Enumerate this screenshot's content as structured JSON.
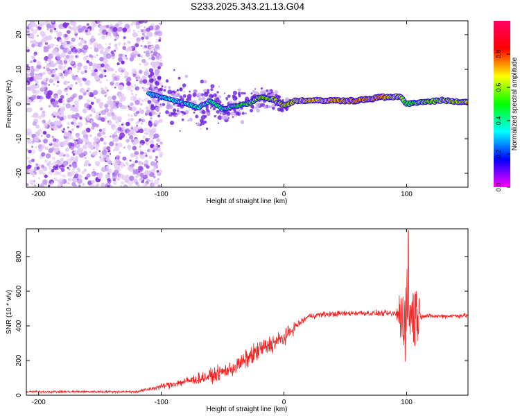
{
  "title": "S233.2025.343.21.13.G04",
  "chart_data": [
    {
      "type": "heatmap",
      "xlabel": "Height of straight line (km)",
      "ylabel": "Frequency (Hz)",
      "xlim": [
        -210,
        150
      ],
      "ylim": [
        -24,
        24
      ],
      "xticks": [
        -200,
        -100,
        0,
        100
      ],
      "xtick_labels": [
        "-200",
        "-100",
        "0",
        "100"
      ],
      "yticks": [
        -20,
        -10,
        0,
        10,
        20
      ],
      "ytick_labels": [
        "-20",
        "-10",
        "0",
        "10",
        "20"
      ],
      "colorbar": {
        "label": "Normalized spectral amplitude",
        "range": [
          0,
          1
        ],
        "ticks": [
          0,
          0.2,
          0.4,
          0.6,
          0.8
        ],
        "tick_labels": [
          "0.0",
          "0.2",
          "0.4",
          "0.6",
          "0.8"
        ],
        "colormap": [
          "#ff00ff",
          "#0000ff",
          "#00ffff",
          "#00ff00",
          "#ffff00",
          "#ff0000",
          "#ff0066"
        ]
      },
      "ridge": {
        "x": [
          -110,
          -95,
          -80,
          -70,
          -60,
          -50,
          -40,
          -30,
          -20,
          -10,
          0,
          10,
          20,
          40,
          60,
          80,
          95,
          100,
          110,
          130,
          150
        ],
        "frequency": [
          3,
          1.5,
          0,
          -1,
          1,
          -1.5,
          -0.5,
          0,
          2,
          1.5,
          -0.5,
          1,
          1,
          1,
          1,
          2,
          2,
          0,
          0.5,
          1,
          0.5
        ],
        "amplitude": [
          0.15,
          0.2,
          0.25,
          0.25,
          0.3,
          0.3,
          0.35,
          0.45,
          0.55,
          0.6,
          0.65,
          0.7,
          0.75,
          0.8,
          0.85,
          0.85,
          0.6,
          0.4,
          0.5,
          0.6,
          0.65
        ]
      },
      "noise_region_x": [
        -210,
        -110
      ]
    },
    {
      "type": "line",
      "xlabel": "Height of straight line (km)",
      "ylabel": "SNR (10 * v/v)",
      "xlim": [
        -210,
        150
      ],
      "ylim": [
        0,
        960
      ],
      "xticks": [
        -200,
        -100,
        0,
        100
      ],
      "xtick_labels": [
        "-200",
        "-100",
        "0",
        "100"
      ],
      "yticks": [
        0,
        200,
        400,
        600,
        800
      ],
      "ytick_labels": [
        "0",
        "200",
        "400",
        "600",
        "800"
      ],
      "color": "#ee2222",
      "envelope": {
        "x": [
          -210,
          -120,
          -100,
          -80,
          -60,
          -40,
          -20,
          0,
          10,
          20,
          30,
          60,
          90,
          97,
          103,
          108,
          112,
          120,
          150
        ],
        "snr": [
          20,
          20,
          50,
          80,
          110,
          160,
          260,
          330,
          400,
          455,
          465,
          475,
          470,
          460,
          470,
          465,
          460,
          455,
          460
        ],
        "noise": [
          10,
          10,
          25,
          40,
          55,
          70,
          90,
          70,
          40,
          25,
          25,
          25,
          25,
          330,
          380,
          300,
          25,
          20,
          20
        ]
      },
      "peak_value": 950
    }
  ]
}
